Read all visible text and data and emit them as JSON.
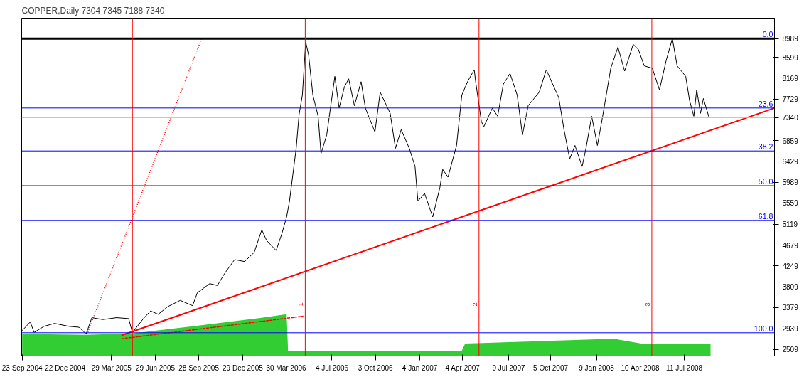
{
  "chart_data": {
    "type": "line",
    "title": "COPPER,Daily  7304 7345 7188 7340",
    "xlim": [
      "2004-09-22",
      "2009-01-16"
    ],
    "ylim": [
      2370,
      9400
    ],
    "xticks": [
      {
        "value": "2004-09-23",
        "label": "23 Sep 2004"
      },
      {
        "value": "2004-12-22",
        "label": "22 Dec 2004"
      },
      {
        "value": "2005-03-29",
        "label": "29 Mar 2005"
      },
      {
        "value": "2005-06-29",
        "label": "29 Jun 2005"
      },
      {
        "value": "2005-09-28",
        "label": "28 Sep 2005"
      },
      {
        "value": "2005-12-29",
        "label": "29 Dec 2005"
      },
      {
        "value": "2006-03-30",
        "label": "30 Mar 2006"
      },
      {
        "value": "2006-07-04",
        "label": "4 Jul 2006"
      },
      {
        "value": "2006-10-03",
        "label": "3 Oct 2006"
      },
      {
        "value": "2007-01-04",
        "label": "4 Jan 2007"
      },
      {
        "value": "2007-04-04",
        "label": "4 Apr 2007"
      },
      {
        "value": "2007-07-09",
        "label": "9 Jul 2007"
      },
      {
        "value": "2007-10-05",
        "label": "5 Oct 2007"
      },
      {
        "value": "2008-01-09",
        "label": "9 Jan 2008"
      },
      {
        "value": "2008-04-10",
        "label": "10 Apr 2008"
      },
      {
        "value": "2008-07-11",
        "label": "11 Jul 2008"
      }
    ],
    "yticks": [
      2509,
      2939,
      3379,
      3809,
      4249,
      4679,
      5119,
      5559,
      5989,
      6429,
      6859,
      7340,
      7729,
      8169,
      8599,
      8989
    ],
    "grid": false,
    "annotations": [
      {
        "text": "0.0",
        "x": "2009-01-16",
        "y": 8989
      },
      {
        "text": "23.6",
        "x": "2009-01-16",
        "y": 7541
      },
      {
        "text": "38.2",
        "x": "2009-01-16",
        "y": 6646
      },
      {
        "text": "50.0",
        "x": "2009-01-16",
        "y": 5922
      },
      {
        "text": "61.8",
        "x": "2009-01-16",
        "y": 5198
      },
      {
        "text": "100.0",
        "x": "2009-01-16",
        "y": 2855
      }
    ],
    "series": [
      {
        "type": "area",
        "color": "#32cd32",
        "x": [
          "2004-09-23",
          "2005-02-03",
          "2005-05-12",
          "2005-09-15",
          "2006-02-01",
          "2006-03-31",
          "2006-04-03",
          "2007-04-02",
          "2007-04-09",
          "2008-02-14",
          "2008-04-12",
          "2008-09-04"
        ],
        "values": [
          2830,
          2810,
          2840,
          2990,
          3160,
          3240,
          2480,
          2480,
          2630,
          2730,
          2630,
          2630
        ]
      },
      {
        "color": "#000000",
        "x": [
          "2004-09-23",
          "2004-10-10",
          "2004-10-18",
          "2004-11-08",
          "2004-11-30",
          "2004-12-29",
          "2005-01-20",
          "2005-02-04",
          "2005-02-16",
          "2005-03-11",
          "2005-04-09",
          "2005-05-04",
          "2005-05-12",
          "2005-06-04",
          "2005-06-19",
          "2005-07-05",
          "2005-07-25",
          "2005-08-20",
          "2005-09-15",
          "2005-09-25",
          "2005-10-21",
          "2005-11-06",
          "2005-11-21",
          "2005-12-12",
          "2006-01-02",
          "2006-01-22",
          "2006-02-07",
          "2006-02-17",
          "2006-03-09",
          "2006-03-21",
          "2006-03-31",
          "2006-04-06",
          "2006-04-13",
          "2006-04-20",
          "2006-04-26",
          "2006-05-03",
          "2006-05-10",
          "2006-05-16",
          "2006-05-25",
          "2006-06-05",
          "2006-06-11",
          "2006-06-23",
          "2006-07-10",
          "2006-07-19",
          "2006-07-30",
          "2006-08-08",
          "2006-08-20",
          "2006-09-03",
          "2006-09-12",
          "2006-10-02",
          "2006-10-13",
          "2006-11-03",
          "2006-11-14",
          "2006-11-26",
          "2006-12-13",
          "2006-12-25",
          "2006-12-31",
          "2007-01-14",
          "2007-01-31",
          "2007-02-15",
          "2007-02-21",
          "2007-03-04",
          "2007-03-22",
          "2007-04-02",
          "2007-04-14",
          "2007-04-28",
          "2007-05-01",
          "2007-05-13",
          "2007-05-18",
          "2007-06-05",
          "2007-06-16",
          "2007-06-28",
          "2007-07-12",
          "2007-07-27",
          "2007-08-07",
          "2007-08-19",
          "2007-09-11",
          "2007-09-26",
          "2007-10-07",
          "2007-10-22",
          "2007-11-02",
          "2007-11-14",
          "2007-11-25",
          "2007-12-10",
          "2007-12-18",
          "2007-12-30",
          "2008-01-11",
          "2008-01-22",
          "2008-02-08",
          "2008-02-23",
          "2008-03-08",
          "2008-03-26",
          "2008-04-06",
          "2008-04-18",
          "2008-05-05",
          "2008-05-20",
          "2008-06-03",
          "2008-06-16",
          "2008-06-26",
          "2008-07-14",
          "2008-07-22",
          "2008-07-31",
          "2008-08-06",
          "2008-08-14",
          "2008-08-20",
          "2008-09-01"
        ],
        "values": [
          2900,
          3080,
          2860,
          2990,
          3050,
          2990,
          2970,
          2830,
          3170,
          3130,
          3170,
          3150,
          2860,
          3150,
          3310,
          3240,
          3400,
          3530,
          3420,
          3690,
          3880,
          3840,
          4090,
          4380,
          4340,
          4530,
          5000,
          4780,
          4570,
          4920,
          5270,
          5600,
          6150,
          6700,
          7400,
          7810,
          8920,
          8650,
          7810,
          7370,
          6590,
          6980,
          8200,
          7540,
          7980,
          8150,
          7590,
          8090,
          7540,
          7040,
          7870,
          7430,
          6700,
          7090,
          6700,
          6320,
          5600,
          5760,
          5270,
          5880,
          6260,
          6100,
          6760,
          7810,
          8090,
          8340,
          8090,
          7260,
          7150,
          7540,
          7370,
          8040,
          8260,
          7810,
          6980,
          7590,
          7870,
          8340,
          8090,
          7760,
          7090,
          6480,
          6760,
          6320,
          6700,
          7370,
          6760,
          7370,
          8370,
          8810,
          8310,
          8870,
          8760,
          8420,
          8370,
          7920,
          8530,
          8990,
          8420,
          8200,
          7700,
          7370,
          7920,
          7430,
          7740,
          7340
        ]
      },
      {
        "type": "line",
        "color": "#ff0000",
        "line_style": "solid",
        "x": [
          "2005-04-19",
          "2009-01-16"
        ],
        "values": [
          2800,
          7540
        ]
      },
      {
        "type": "line",
        "color": "#ff0000",
        "line_style": "dotted",
        "x": [
          "2005-02-06",
          "2005-10-04"
        ],
        "values": [
          2830,
          8990
        ]
      },
      {
        "type": "line",
        "color": "#ff0000",
        "line_style": "dashed",
        "x": [
          "2005-04-19",
          "2006-05-05"
        ],
        "values": [
          2730,
          3200
        ]
      }
    ],
    "ref_lines": [
      {
        "axis": "y",
        "value": 8989,
        "color": "#000000"
      },
      {
        "axis": "y",
        "value": 7541,
        "color": "#0000ff"
      },
      {
        "axis": "y",
        "value": 6646,
        "color": "#0000ff"
      },
      {
        "axis": "y",
        "value": 5922,
        "color": "#0000ff"
      },
      {
        "axis": "y",
        "value": 5198,
        "color": "#0000ff"
      },
      {
        "axis": "y",
        "value": 2855,
        "color": "#0000ff"
      },
      {
        "axis": "y",
        "value": 7340,
        "color": "#c0c0c0"
      },
      {
        "axis": "x",
        "value": "2005-05-12",
        "color": "#ff0000"
      },
      {
        "axis": "x",
        "value": "2006-05-09",
        "label": "1",
        "color": "#ff0000"
      },
      {
        "axis": "x",
        "value": "2007-05-08",
        "label": "2",
        "color": "#ff0000"
      },
      {
        "axis": "x",
        "value": "2008-05-04",
        "label": "3",
        "color": "#ff0000"
      }
    ]
  }
}
